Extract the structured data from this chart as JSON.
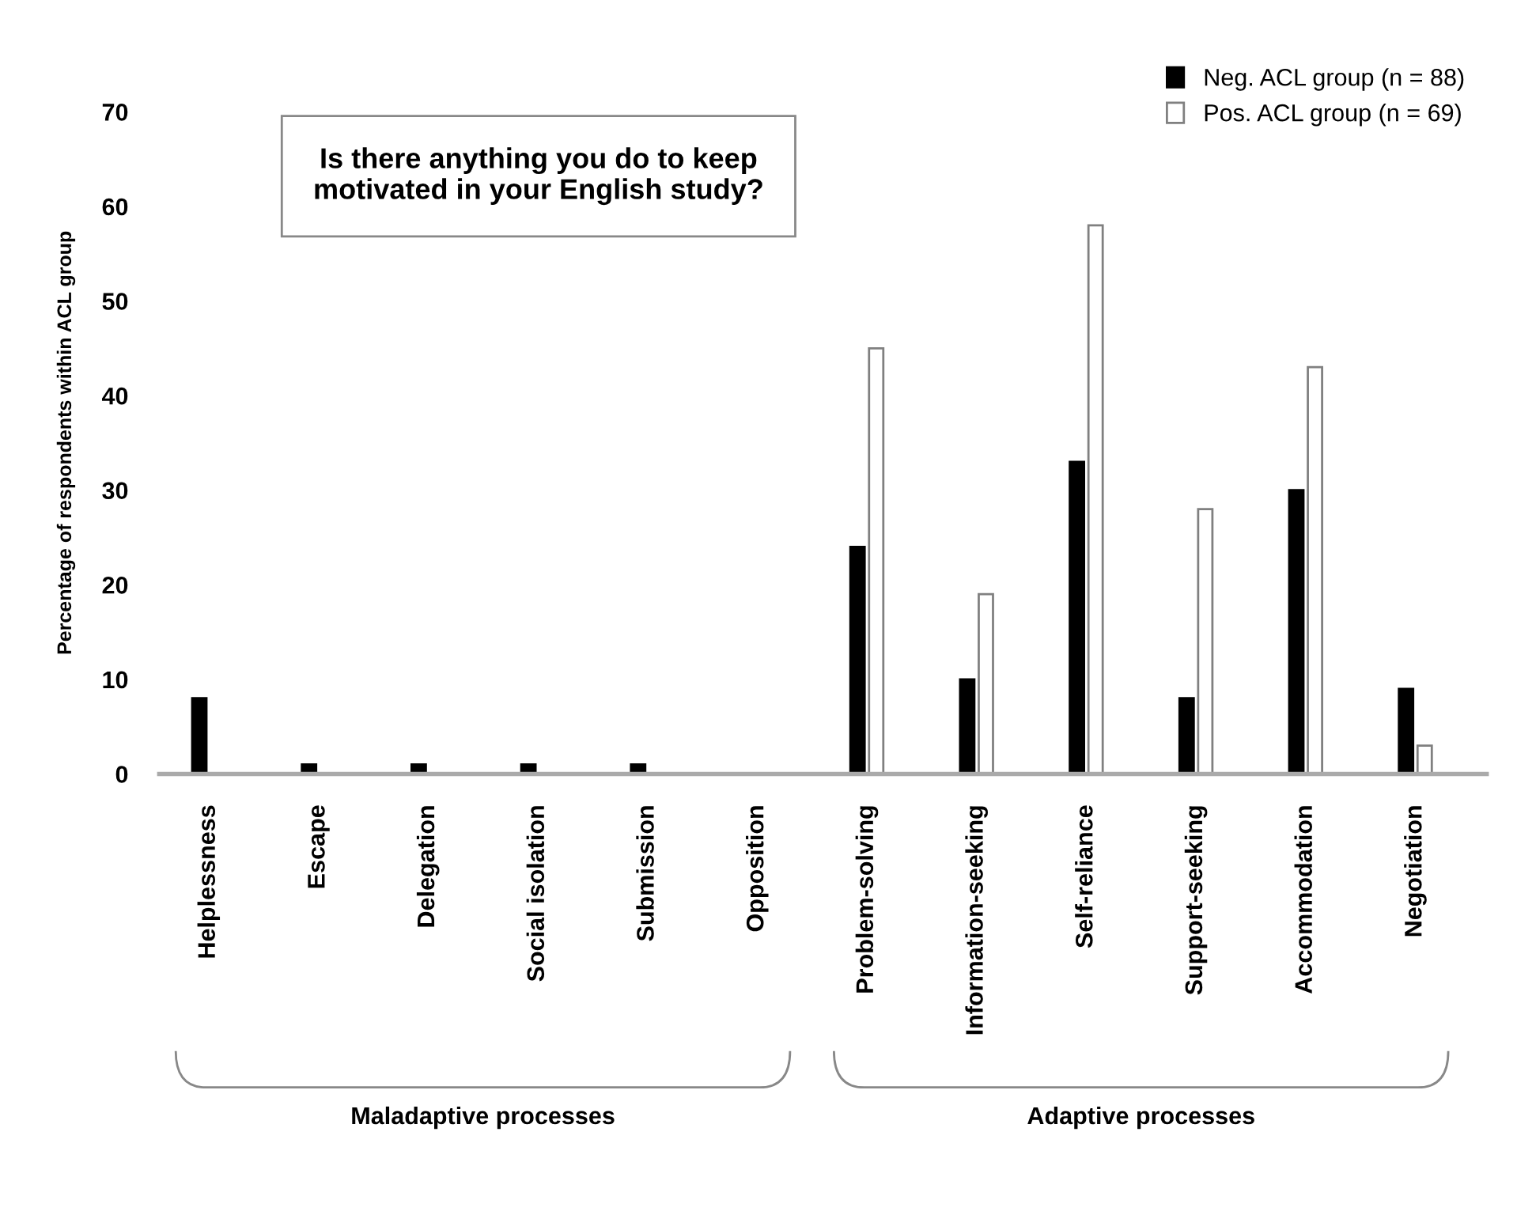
{
  "chart_data": {
    "type": "bar",
    "title": "Is there anything you do to keep\nmotivated in your English study?",
    "ylabel": "Percentage of respondents within ACL group",
    "categories": [
      "Helplessness",
      "Escape",
      "Delegation",
      "Social isolation",
      "Submission",
      "Opposition",
      "Problem-solving",
      "Information-seeking",
      "Self-reliance",
      "Support-seeking",
      "Accommodation",
      "Negotiation"
    ],
    "series": [
      {
        "name": "Neg. ACL group (n = 88)",
        "color": "#000000",
        "values": [
          8,
          1,
          1,
          1,
          1,
          0,
          24,
          10,
          33,
          8,
          30,
          9
        ]
      },
      {
        "name": "Pos. ACL group (n = 69)",
        "color": "#ffffff",
        "values": [
          0,
          0,
          0,
          0,
          0,
          0,
          45,
          19,
          58,
          28,
          43,
          3
        ]
      }
    ],
    "annotations": [
      "Maladaptive processes",
      "Adaptive processes"
    ],
    "ylim": [
      0,
      70
    ],
    "yticks": [
      0,
      10,
      20,
      30,
      40,
      50,
      60,
      70
    ],
    "grid": false,
    "legend": "top right"
  }
}
